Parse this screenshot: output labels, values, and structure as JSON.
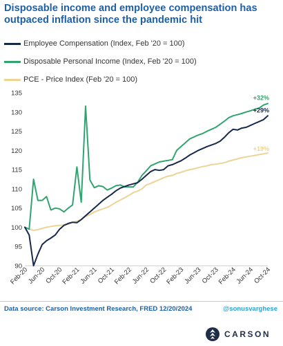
{
  "title": "Disposable income and employee compensation has outpaced inflation since the pandemic hit",
  "legend": [
    {
      "label": "Employee Compensation (Index, Feb '20 = 100)",
      "color": "#16294a"
    },
    {
      "label": "Disposable Personal Income (Index, Feb '20 = 100)",
      "color": "#2ea56e"
    },
    {
      "label": "PCE - Price Index (Feb '20 = 100)",
      "color": "#ebd494"
    }
  ],
  "chart_data": {
    "type": "line",
    "x": [
      "Feb-20",
      "Mar-20",
      "Apr-20",
      "May-20",
      "Jun-20",
      "Jul-20",
      "Aug-20",
      "Sep-20",
      "Oct-20",
      "Nov-20",
      "Dec-20",
      "Jan-21",
      "Feb-21",
      "Mar-21",
      "Apr-21",
      "May-21",
      "Jun-21",
      "Jul-21",
      "Aug-21",
      "Sep-21",
      "Oct-21",
      "Nov-21",
      "Dec-21",
      "Jan-22",
      "Feb-22",
      "Mar-22",
      "Apr-22",
      "May-22",
      "Jun-22",
      "Jul-22",
      "Aug-22",
      "Sep-22",
      "Oct-22",
      "Nov-22",
      "Dec-22",
      "Jan-23",
      "Feb-23",
      "Mar-23",
      "Apr-23",
      "May-23",
      "Jun-23",
      "Jul-23",
      "Aug-23",
      "Sep-23",
      "Oct-23",
      "Nov-23",
      "Dec-23",
      "Jan-24",
      "Feb-24",
      "Mar-24",
      "Apr-24",
      "May-24",
      "Jun-24",
      "Jul-24",
      "Aug-24",
      "Sep-24",
      "Oct-24"
    ],
    "x_tick_labels": [
      "Feb-20",
      "Jun-20",
      "Oct-20",
      "Feb-21",
      "Jun-21",
      "Oct-21",
      "Feb-22",
      "Jun-22",
      "Oct-22",
      "Feb-23",
      "Jun-23",
      "Oct-23",
      "Feb-24",
      "Jun-24",
      "Oct-24"
    ],
    "ylim": [
      90,
      135
    ],
    "yticks": [
      90,
      95,
      100,
      105,
      110,
      115,
      120,
      125,
      130,
      135
    ],
    "grid": false,
    "legend_position": "top-left",
    "series": [
      {
        "name": "Employee Compensation (Index, Feb '20 = 100)",
        "color": "#16294a",
        "end_label": "+29%",
        "values": [
          100,
          98,
          90,
          93,
          95.5,
          96.5,
          97.2,
          98,
          99.5,
          100.5,
          101,
          101.3,
          101.2,
          102,
          103,
          104,
          105,
          106,
          107,
          107.8,
          108.6,
          109.5,
          110.2,
          110.6,
          111,
          111.3,
          111.6,
          112.5,
          113.5,
          114.5,
          115,
          114.8,
          115,
          116,
          116.3,
          116.8,
          117.3,
          118,
          118.8,
          119.4,
          120,
          120.5,
          121,
          121.4,
          121.8,
          122.4,
          123.4,
          124.6,
          125.5,
          125.3,
          125.8,
          126,
          126.5,
          127,
          127.5,
          128,
          129
        ]
      },
      {
        "name": "Disposable Personal Income (Index, Feb '20 = 100)",
        "color": "#2ea56e",
        "end_label": "+32%",
        "values": [
          100,
          99.5,
          112.5,
          107,
          107,
          108,
          104.5,
          105,
          104.8,
          104,
          105,
          105.8,
          115.7,
          106.5,
          131.5,
          112.3,
          110.3,
          110.8,
          110.6,
          109.7,
          110.2,
          110.8,
          111,
          110.5,
          110.5,
          110.5,
          111.7,
          113.5,
          114.7,
          116,
          116.5,
          117,
          117.2,
          117.4,
          117.6,
          120,
          121,
          122,
          123,
          123.5,
          124,
          124.4,
          125,
          125.5,
          126,
          126.8,
          127.6,
          128.5,
          129,
          129.3,
          129.6,
          130,
          130.3,
          130.7,
          131,
          131.8,
          132.2
        ]
      },
      {
        "name": "PCE - Price Index (Feb '20 = 100)",
        "color": "#ebd494",
        "end_label": "+19%",
        "values": [
          100,
          99.6,
          99.2,
          99.4,
          99.7,
          100,
          100.2,
          100.4,
          100.5,
          100.6,
          100.8,
          101.3,
          101.6,
          102,
          102.8,
          103.3,
          104,
          104.4,
          104.8,
          105.2,
          105.8,
          106.5,
          107.1,
          107.7,
          108.3,
          109,
          109.4,
          110,
          111,
          111.4,
          111.9,
          112.4,
          112.9,
          113.3,
          113.5,
          114,
          114.3,
          114.7,
          115,
          115.2,
          115.5,
          115.8,
          116,
          116.3,
          116.4,
          116.6,
          116.8,
          117.2,
          117.5,
          117.8,
          118.1,
          118.3,
          118.5,
          118.7,
          118.9,
          119.1,
          119.3
        ]
      }
    ]
  },
  "footer": {
    "source": "Data source: Carson Investment Research, FRED   12/20/2024",
    "handle": "@sonusvarghese",
    "brand": "CARSON"
  }
}
